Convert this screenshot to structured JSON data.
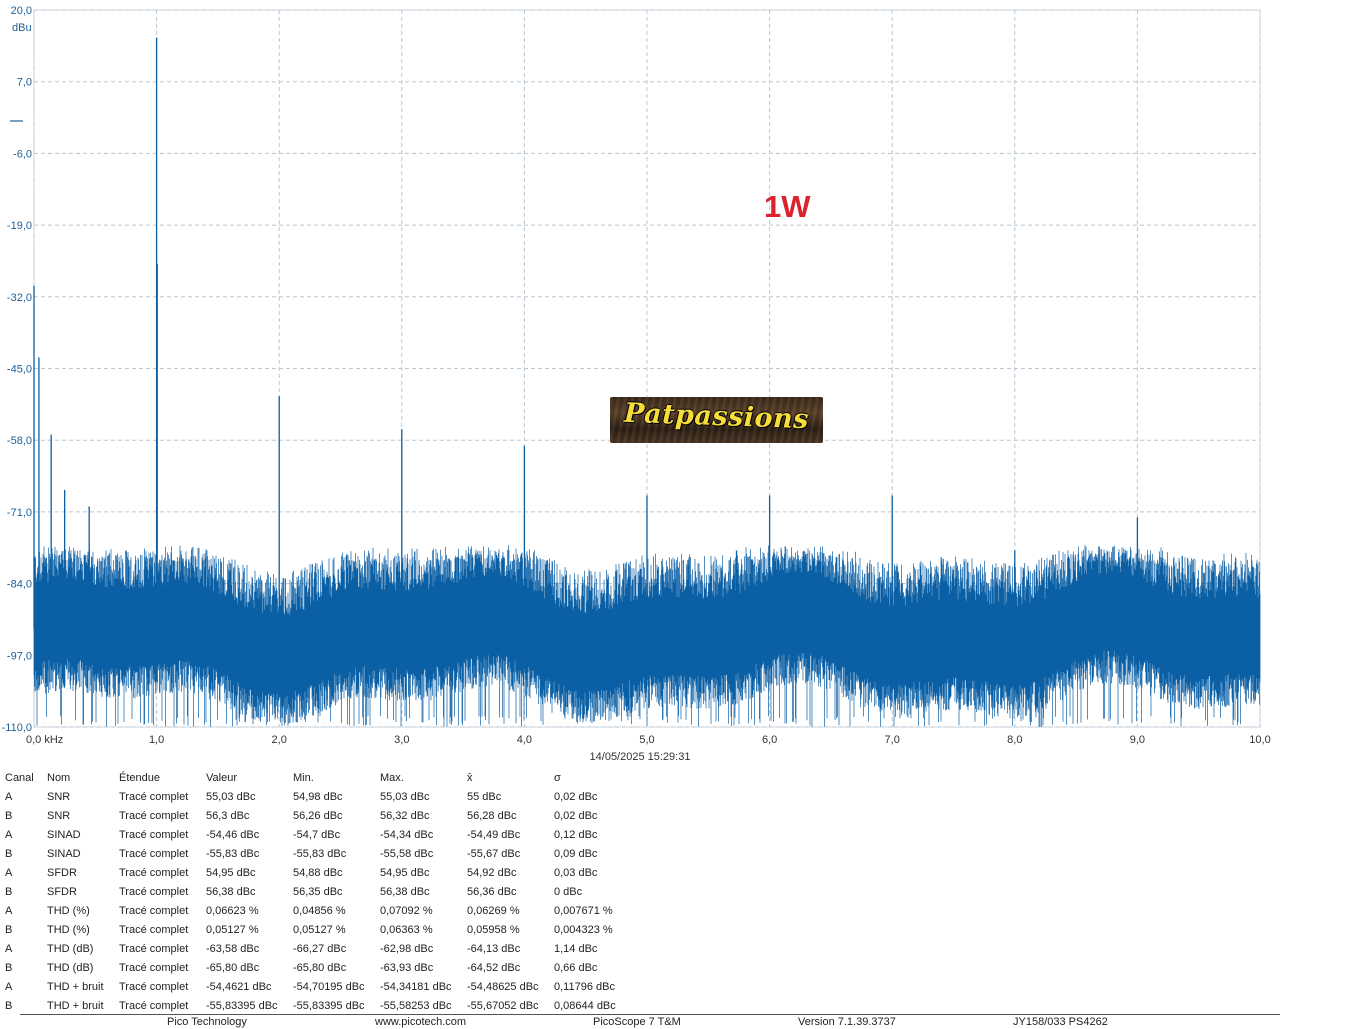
{
  "chart_data": {
    "type": "line",
    "title": "",
    "xlabel": "",
    "ylabel": "",
    "y_unit": "dBu",
    "x_unit": "kHz",
    "xlim": [
      0,
      10
    ],
    "ylim": [
      -110,
      20
    ],
    "x_ticks": [
      "0,0 kHz",
      "1,0",
      "2,0",
      "3,0",
      "4,0",
      "5,0",
      "6,0",
      "7,0",
      "8,0",
      "9,0",
      "10,0"
    ],
    "y_ticks": [
      {
        "value": 20,
        "label": "20,0"
      },
      {
        "value": 7,
        "label": "7,0"
      },
      {
        "value": -6,
        "label": "-6,0"
      },
      {
        "value": -19,
        "label": "-19,0"
      },
      {
        "value": -32,
        "label": "-32,0"
      },
      {
        "value": -45,
        "label": "-45,0"
      },
      {
        "value": -58,
        "label": "-58,0"
      },
      {
        "value": -71,
        "label": "-71,0"
      },
      {
        "value": -84,
        "label": "-84,0"
      },
      {
        "value": -97,
        "label": "-97,0"
      },
      {
        "value": -110,
        "label": "-110,0"
      }
    ],
    "grid": true,
    "color": "#0b5fa5",
    "noise_floor_range": [
      -100,
      -86
    ],
    "peaks": [
      {
        "x": 0.0,
        "y": -30
      },
      {
        "x": 0.04,
        "y": -43
      },
      {
        "x": 0.14,
        "y": -57
      },
      {
        "x": 0.25,
        "y": -67
      },
      {
        "x": 0.45,
        "y": -70
      },
      {
        "x": 0.75,
        "y": -78
      },
      {
        "x": 1.0,
        "y": 15
      },
      {
        "x": 1.005,
        "y": -26
      },
      {
        "x": 2.0,
        "y": -50
      },
      {
        "x": 3.0,
        "y": -56
      },
      {
        "x": 4.0,
        "y": -59
      },
      {
        "x": 5.0,
        "y": -68
      },
      {
        "x": 5.73,
        "y": -78
      },
      {
        "x": 6.0,
        "y": -68
      },
      {
        "x": 7.0,
        "y": -68
      },
      {
        "x": 8.0,
        "y": -78
      },
      {
        "x": 9.0,
        "y": -72
      }
    ]
  },
  "y_unit_label": "dBu",
  "annotation": "1W",
  "logo_text": "Patpassions",
  "timestamp": "14/05/2025 15:29:31",
  "measurements": {
    "headers": [
      "Canal",
      "Nom",
      "Étendue",
      "Valeur",
      "Min.",
      "Max.",
      "x̄",
      "σ"
    ],
    "rows": [
      [
        "A",
        "SNR",
        "Tracé complet",
        "55,03 dBc",
        "54,98 dBc",
        "55,03 dBc",
        "55 dBc",
        "0,02 dBc"
      ],
      [
        "B",
        "SNR",
        "Tracé complet",
        "56,3 dBc",
        "56,26 dBc",
        "56,32 dBc",
        "56,28 dBc",
        "0,02 dBc"
      ],
      [
        "A",
        "SINAD",
        "Tracé complet",
        "-54,46 dBc",
        "-54,7 dBc",
        "-54,34 dBc",
        "-54,49 dBc",
        "0,12 dBc"
      ],
      [
        "B",
        "SINAD",
        "Tracé complet",
        "-55,83 dBc",
        "-55,83 dBc",
        "-55,58 dBc",
        "-55,67 dBc",
        "0,09 dBc"
      ],
      [
        "A",
        "SFDR",
        "Tracé complet",
        "54,95 dBc",
        "54,88 dBc",
        "54,95 dBc",
        "54,92 dBc",
        "0,03 dBc"
      ],
      [
        "B",
        "SFDR",
        "Tracé complet",
        "56,38 dBc",
        "56,35 dBc",
        "56,38 dBc",
        "56,36 dBc",
        "0 dBc"
      ],
      [
        "A",
        "THD (%)",
        "Tracé complet",
        "0,06623 %",
        "0,04856 %",
        "0,07092 %",
        "0,06269 %",
        "0,007671 %"
      ],
      [
        "B",
        "THD (%)",
        "Tracé complet",
        "0,05127 %",
        "0,05127 %",
        "0,06363 %",
        "0,05958 %",
        "0,004323 %"
      ],
      [
        "A",
        "THD (dB)",
        "Tracé complet",
        "-63,58 dBc",
        "-66,27 dBc",
        "-62,98 dBc",
        "-64,13 dBc",
        "1,14 dBc"
      ],
      [
        "B",
        "THD (dB)",
        "Tracé complet",
        "-65,80 dBc",
        "-65,80 dBc",
        "-63,93 dBc",
        "-64,52 dBc",
        "0,66 dBc"
      ],
      [
        "A",
        "THD + bruit",
        "Tracé complet",
        "-54,4621 dBc",
        "-54,70195 dBc",
        "-54,34181 dBc",
        "-54,48625 dBc",
        "0,11796 dBc"
      ],
      [
        "B",
        "THD + bruit",
        "Tracé complet",
        "-55,83395 dBc",
        "-55,83395 dBc",
        "-55,58253 dBc",
        "-55,67052 dBc",
        "0,08644 dBc"
      ]
    ]
  },
  "footer": {
    "company": "Pico Technology",
    "website": "www.picotech.com",
    "product": "PicoScope 7 T&M",
    "version": "Version 7.1.39.3737",
    "device": "JY158/033 PS4262"
  }
}
